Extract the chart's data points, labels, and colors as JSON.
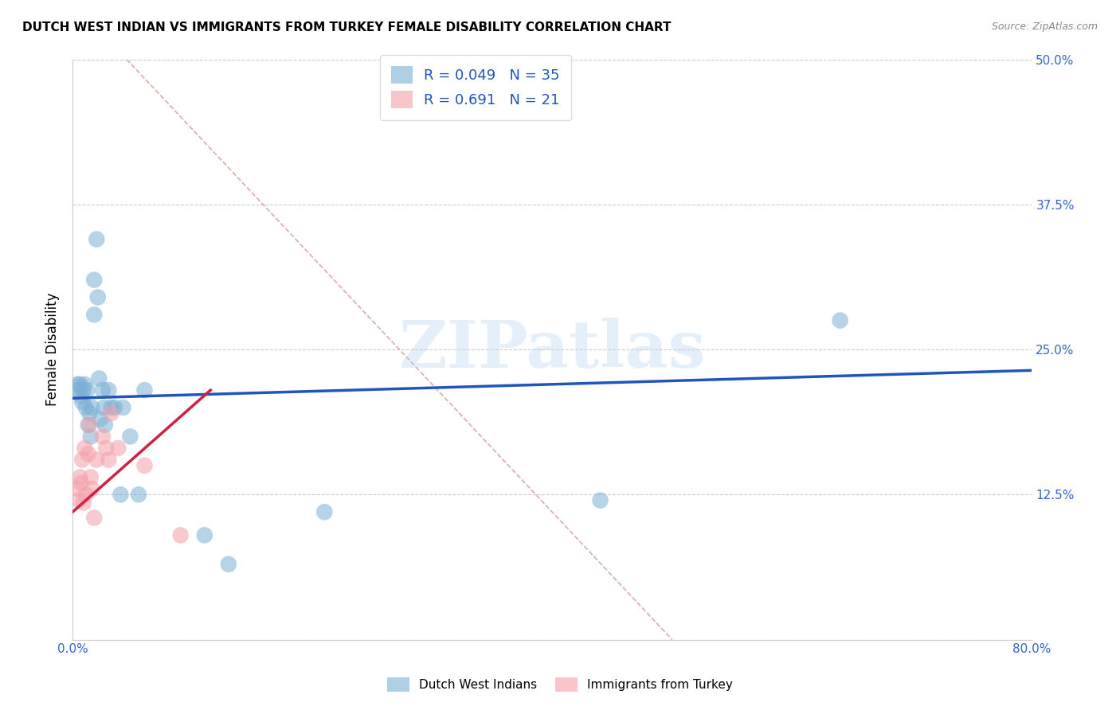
{
  "title": "DUTCH WEST INDIAN VS IMMIGRANTS FROM TURKEY FEMALE DISABILITY CORRELATION CHART",
  "source": "Source: ZipAtlas.com",
  "ylabel": "Female Disability",
  "xlim": [
    0.0,
    0.8
  ],
  "ylim": [
    0.0,
    0.5
  ],
  "xticks": [
    0.0,
    0.1,
    0.2,
    0.3,
    0.4,
    0.5,
    0.6,
    0.7,
    0.8
  ],
  "xticklabels": [
    "0.0%",
    "",
    "",
    "",
    "",
    "",
    "",
    "",
    "80.0%"
  ],
  "yticks": [
    0.0,
    0.125,
    0.25,
    0.375,
    0.5
  ],
  "yticklabels_right": [
    "",
    "12.5%",
    "25.0%",
    "37.5%",
    "50.0%"
  ],
  "legend1_R": "0.049",
  "legend1_N": "35",
  "legend2_R": "0.691",
  "legend2_N": "21",
  "blue_color": "#7BAFD4",
  "pink_color": "#F4A0A8",
  "blue_line_color": "#2255BB",
  "pink_line_color": "#CC2244",
  "grid_color": "#CCCCCC",
  "axis_tick_color": "#3366CC",
  "blue_scatter_x": [
    0.004,
    0.005,
    0.006,
    0.007,
    0.008,
    0.009,
    0.01,
    0.011,
    0.012,
    0.013,
    0.014,
    0.015,
    0.016,
    0.018,
    0.018,
    0.02,
    0.021,
    0.022,
    0.023,
    0.025,
    0.026,
    0.027,
    0.03,
    0.032,
    0.035,
    0.04,
    0.042,
    0.048,
    0.055,
    0.06,
    0.11,
    0.13,
    0.21,
    0.44,
    0.64
  ],
  "blue_scatter_y": [
    0.22,
    0.215,
    0.22,
    0.21,
    0.205,
    0.215,
    0.22,
    0.2,
    0.215,
    0.185,
    0.195,
    0.175,
    0.2,
    0.31,
    0.28,
    0.345,
    0.295,
    0.225,
    0.19,
    0.215,
    0.2,
    0.185,
    0.215,
    0.2,
    0.2,
    0.125,
    0.2,
    0.175,
    0.125,
    0.215,
    0.09,
    0.065,
    0.11,
    0.12,
    0.275
  ],
  "pink_scatter_x": [
    0.004,
    0.005,
    0.006,
    0.007,
    0.008,
    0.009,
    0.01,
    0.011,
    0.013,
    0.014,
    0.015,
    0.016,
    0.018,
    0.02,
    0.025,
    0.028,
    0.03,
    0.032,
    0.038,
    0.06,
    0.09
  ],
  "pink_scatter_y": [
    0.13,
    0.12,
    0.14,
    0.135,
    0.155,
    0.118,
    0.165,
    0.125,
    0.16,
    0.185,
    0.14,
    0.13,
    0.105,
    0.155,
    0.175,
    0.165,
    0.155,
    0.195,
    0.165,
    0.15,
    0.09
  ],
  "blue_trend_x": [
    0.0,
    0.8
  ],
  "blue_trend_y": [
    0.208,
    0.232
  ],
  "pink_trend_x": [
    0.0,
    0.115
  ],
  "pink_trend_y": [
    0.11,
    0.215
  ],
  "ref_line_x": [
    0.045,
    0.5
  ],
  "ref_line_y": [
    0.5,
    0.0
  ],
  "watermark": "ZIPatlas",
  "legend_color": "#2255BB",
  "bg_color": "#FFFFFF"
}
